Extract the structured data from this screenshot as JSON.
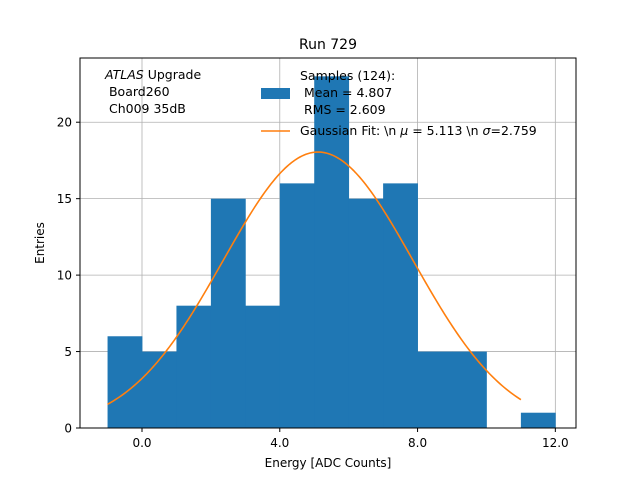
{
  "chart_data": {
    "type": "bar",
    "title": "Run 729",
    "xlabel": "Energy [ADC Counts]",
    "ylabel": "Entries",
    "xlim": [
      -1.8,
      12.6
    ],
    "ylim": [
      0,
      24.2
    ],
    "grid": true,
    "xticks": [
      0,
      4,
      8,
      12
    ],
    "xtick_labels": [
      "0.0",
      "4.0",
      "8.0",
      "12.0"
    ],
    "yticks": [
      0,
      5,
      10,
      15,
      20
    ],
    "ytick_labels": [
      "0",
      "5",
      "10",
      "15",
      "20"
    ],
    "bar_color": "#1f77b4",
    "fit_color": "#ff7f0e",
    "histogram": {
      "bins": [
        {
          "x0": -1,
          "x1": 0,
          "count": 6
        },
        {
          "x0": 0,
          "x1": 1,
          "count": 5
        },
        {
          "x0": 1,
          "x1": 2,
          "count": 8
        },
        {
          "x0": 2,
          "x1": 3,
          "count": 15
        },
        {
          "x0": 3,
          "x1": 4,
          "count": 8
        },
        {
          "x0": 4,
          "x1": 5,
          "count": 16
        },
        {
          "x0": 5,
          "x1": 6,
          "count": 23
        },
        {
          "x0": 6,
          "x1": 7,
          "count": 15
        },
        {
          "x0": 7,
          "x1": 8,
          "count": 16
        },
        {
          "x0": 8,
          "x1": 9,
          "count": 5
        },
        {
          "x0": 9,
          "x1": 10,
          "count": 5
        },
        {
          "x0": 10,
          "x1": 11,
          "count": 0
        },
        {
          "x0": 11,
          "x1": 12,
          "count": 1
        }
      ]
    },
    "fit": {
      "amplitude": 18.05,
      "mu": 5.113,
      "sigma": 2.759,
      "x_range": [
        -1,
        11
      ]
    },
    "annotation": {
      "italic": "ATLAS",
      "rest": " Upgrade",
      "line2": " Board260",
      "line3": " Ch009 35dB"
    },
    "legend": {
      "hist_line1": "Samples (124):",
      "hist_line2": " Mean = 4.807",
      "hist_line3": " RMS = 2.609",
      "fit_pre": "Gaussian Fit: \\n ",
      "fit_mu": "μ",
      "fit_mid": " = 5.113 \\n ",
      "fit_sigma": "σ",
      "fit_post": "=2.759"
    }
  }
}
